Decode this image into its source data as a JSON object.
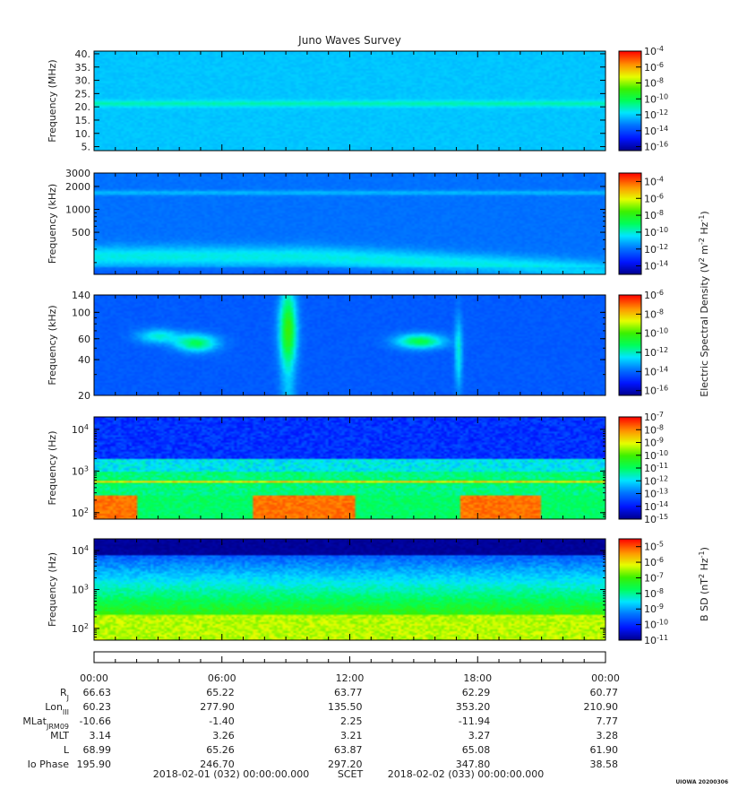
{
  "title": "Juno Waves Survey",
  "signature": "UIOWA 20200306",
  "chart_data": [
    {
      "type": "heatmap",
      "ylabel": "Frequency (MHz)",
      "yscale": "linear",
      "ylim": [
        3.5,
        41
      ],
      "ytick_values": [
        5,
        10,
        15,
        20,
        25,
        30,
        35,
        40
      ],
      "ytick_labels": [
        "5.",
        "10.",
        "15.",
        "20.",
        "25.",
        "30.",
        "35.",
        "40."
      ],
      "colorbar": {
        "range": [
          -16.5,
          -4
        ],
        "tick_exponents": [
          "-4",
          "-6",
          "-8",
          "-10",
          "-12",
          "-14",
          "-16"
        ],
        "tick_values": [
          -4,
          -6,
          -8,
          -10,
          -12,
          -14,
          -16
        ]
      },
      "features": [
        "background about 10^-12",
        "band at 21 MHz about 10^-11"
      ]
    },
    {
      "type": "heatmap",
      "ylabel": "Frequency (kHz)",
      "yscale": "log",
      "ylim": [
        140,
        3000
      ],
      "ytick_values": [
        500,
        1000,
        2000,
        3000
      ],
      "ytick_labels": [
        "500",
        "1000",
        "2000",
        "3000"
      ],
      "colorbar": {
        "range": [
          -15,
          -3
        ],
        "tick_exponents": [
          "-4",
          "-6",
          "-8",
          "-10",
          "-12",
          "-14"
        ],
        "tick_values": [
          -4,
          -6,
          -8,
          -10,
          -12,
          -14
        ]
      },
      "features": [
        "band at 1600 kHz",
        "enhanced emission near 250 kHz decreasing after 12:00"
      ]
    },
    {
      "type": "heatmap",
      "ylabel": "Frequency (kHz)",
      "yscale": "log",
      "ylim": [
        20,
        140
      ],
      "ytick_values": [
        20,
        40,
        60,
        100,
        140
      ],
      "ytick_labels": [
        "20",
        "40",
        "60",
        "100",
        "140"
      ],
      "colorbar": {
        "range": [
          -16.5,
          -6
        ],
        "tick_exponents": [
          "-6",
          "-8",
          "-10",
          "-12",
          "-14",
          "-16"
        ],
        "tick_values": [
          -6,
          -8,
          -10,
          -12,
          -14,
          -16
        ]
      },
      "features": [
        "emission patches near 55 kHz around 03:00-06:00 and 14:00-16:00",
        "bursts near 09:00"
      ]
    },
    {
      "type": "heatmap",
      "ylabel": "Frequency (Hz)",
      "yscale": "log",
      "ylim": [
        70,
        20000
      ],
      "ytick_values": [
        100,
        1000,
        10000
      ],
      "ytick_labels": [
        [
          "10",
          "2"
        ],
        [
          "10",
          "3"
        ],
        [
          "10",
          "4"
        ]
      ],
      "colorbar": {
        "range": [
          -15,
          -7
        ],
        "tick_exponents": [
          "-7",
          "-8",
          "-9",
          "-10",
          "-11",
          "-12",
          "-13",
          "-14",
          "-15"
        ],
        "tick_values": [
          -7,
          -8,
          -9,
          -10,
          -11,
          -12,
          -13,
          -14,
          -15
        ]
      },
      "features": [
        "strong emission below 300 Hz in intervals",
        "line at 550 Hz"
      ]
    },
    {
      "type": "heatmap",
      "ylabel": "Frequency (Hz)",
      "yscale": "log",
      "ylim": [
        50,
        20000
      ],
      "ytick_values": [
        100,
        1000,
        10000
      ],
      "ytick_labels": [
        [
          "10",
          "2"
        ],
        [
          "10",
          "3"
        ],
        [
          "10",
          "4"
        ]
      ],
      "colorbar": {
        "range": [
          -11,
          -4.5
        ],
        "tick_exponents": [
          "-5",
          "-6",
          "-7",
          "-8",
          "-9",
          "-10",
          "-11"
        ],
        "tick_values": [
          -5,
          -6,
          -7,
          -8,
          -9,
          -10,
          -11
        ]
      },
      "features": [
        "intensity increasing toward low frequency"
      ]
    }
  ],
  "colorbar_labels": {
    "electric": "Electric Spectral Density (V2 m-2 Hz-1)",
    "electric_parts": [
      "Electric Spectral Density (V",
      "2",
      " m",
      "-2",
      " Hz",
      "-1",
      ")"
    ],
    "magnetic": "B SD (nT2 Hz-1)",
    "magnetic_parts": [
      "B SD (nT",
      "2",
      " Hz",
      "-1",
      ")"
    ],
    "exponent_base": "10"
  },
  "time_axis": {
    "tick_hours": [
      0,
      6,
      12,
      18,
      24
    ],
    "labels": [
      "00:00",
      "06:00",
      "12:00",
      "18:00",
      "00:00"
    ],
    "start": "2018-02-01 (032) 00:00:00.000",
    "center": "SCET",
    "end": "2018-02-02 (033) 00:00:00.000"
  },
  "ephemeris": [
    {
      "label": "R",
      "sub": "J",
      "values": [
        "66.63",
        "65.22",
        "63.77",
        "62.29",
        "60.77"
      ]
    },
    {
      "label": "Lon",
      "sub": "III",
      "values": [
        "60.23",
        "277.90",
        "135.50",
        "353.20",
        "210.90"
      ]
    },
    {
      "label": "MLat",
      "sub": "JRM09",
      "values": [
        "-10.66",
        "-1.40",
        "2.25",
        "-11.94",
        "7.77"
      ]
    },
    {
      "label": "MLT",
      "sub": "",
      "values": [
        "3.14",
        "3.26",
        "3.21",
        "3.27",
        "3.28"
      ]
    },
    {
      "label": "L",
      "sub": "",
      "values": [
        "68.99",
        "65.26",
        "63.87",
        "65.08",
        "61.90"
      ]
    },
    {
      "label": "Io Phase",
      "sub": "",
      "values": [
        "195.90",
        "246.70",
        "297.20",
        "347.80",
        "38.58"
      ]
    }
  ]
}
